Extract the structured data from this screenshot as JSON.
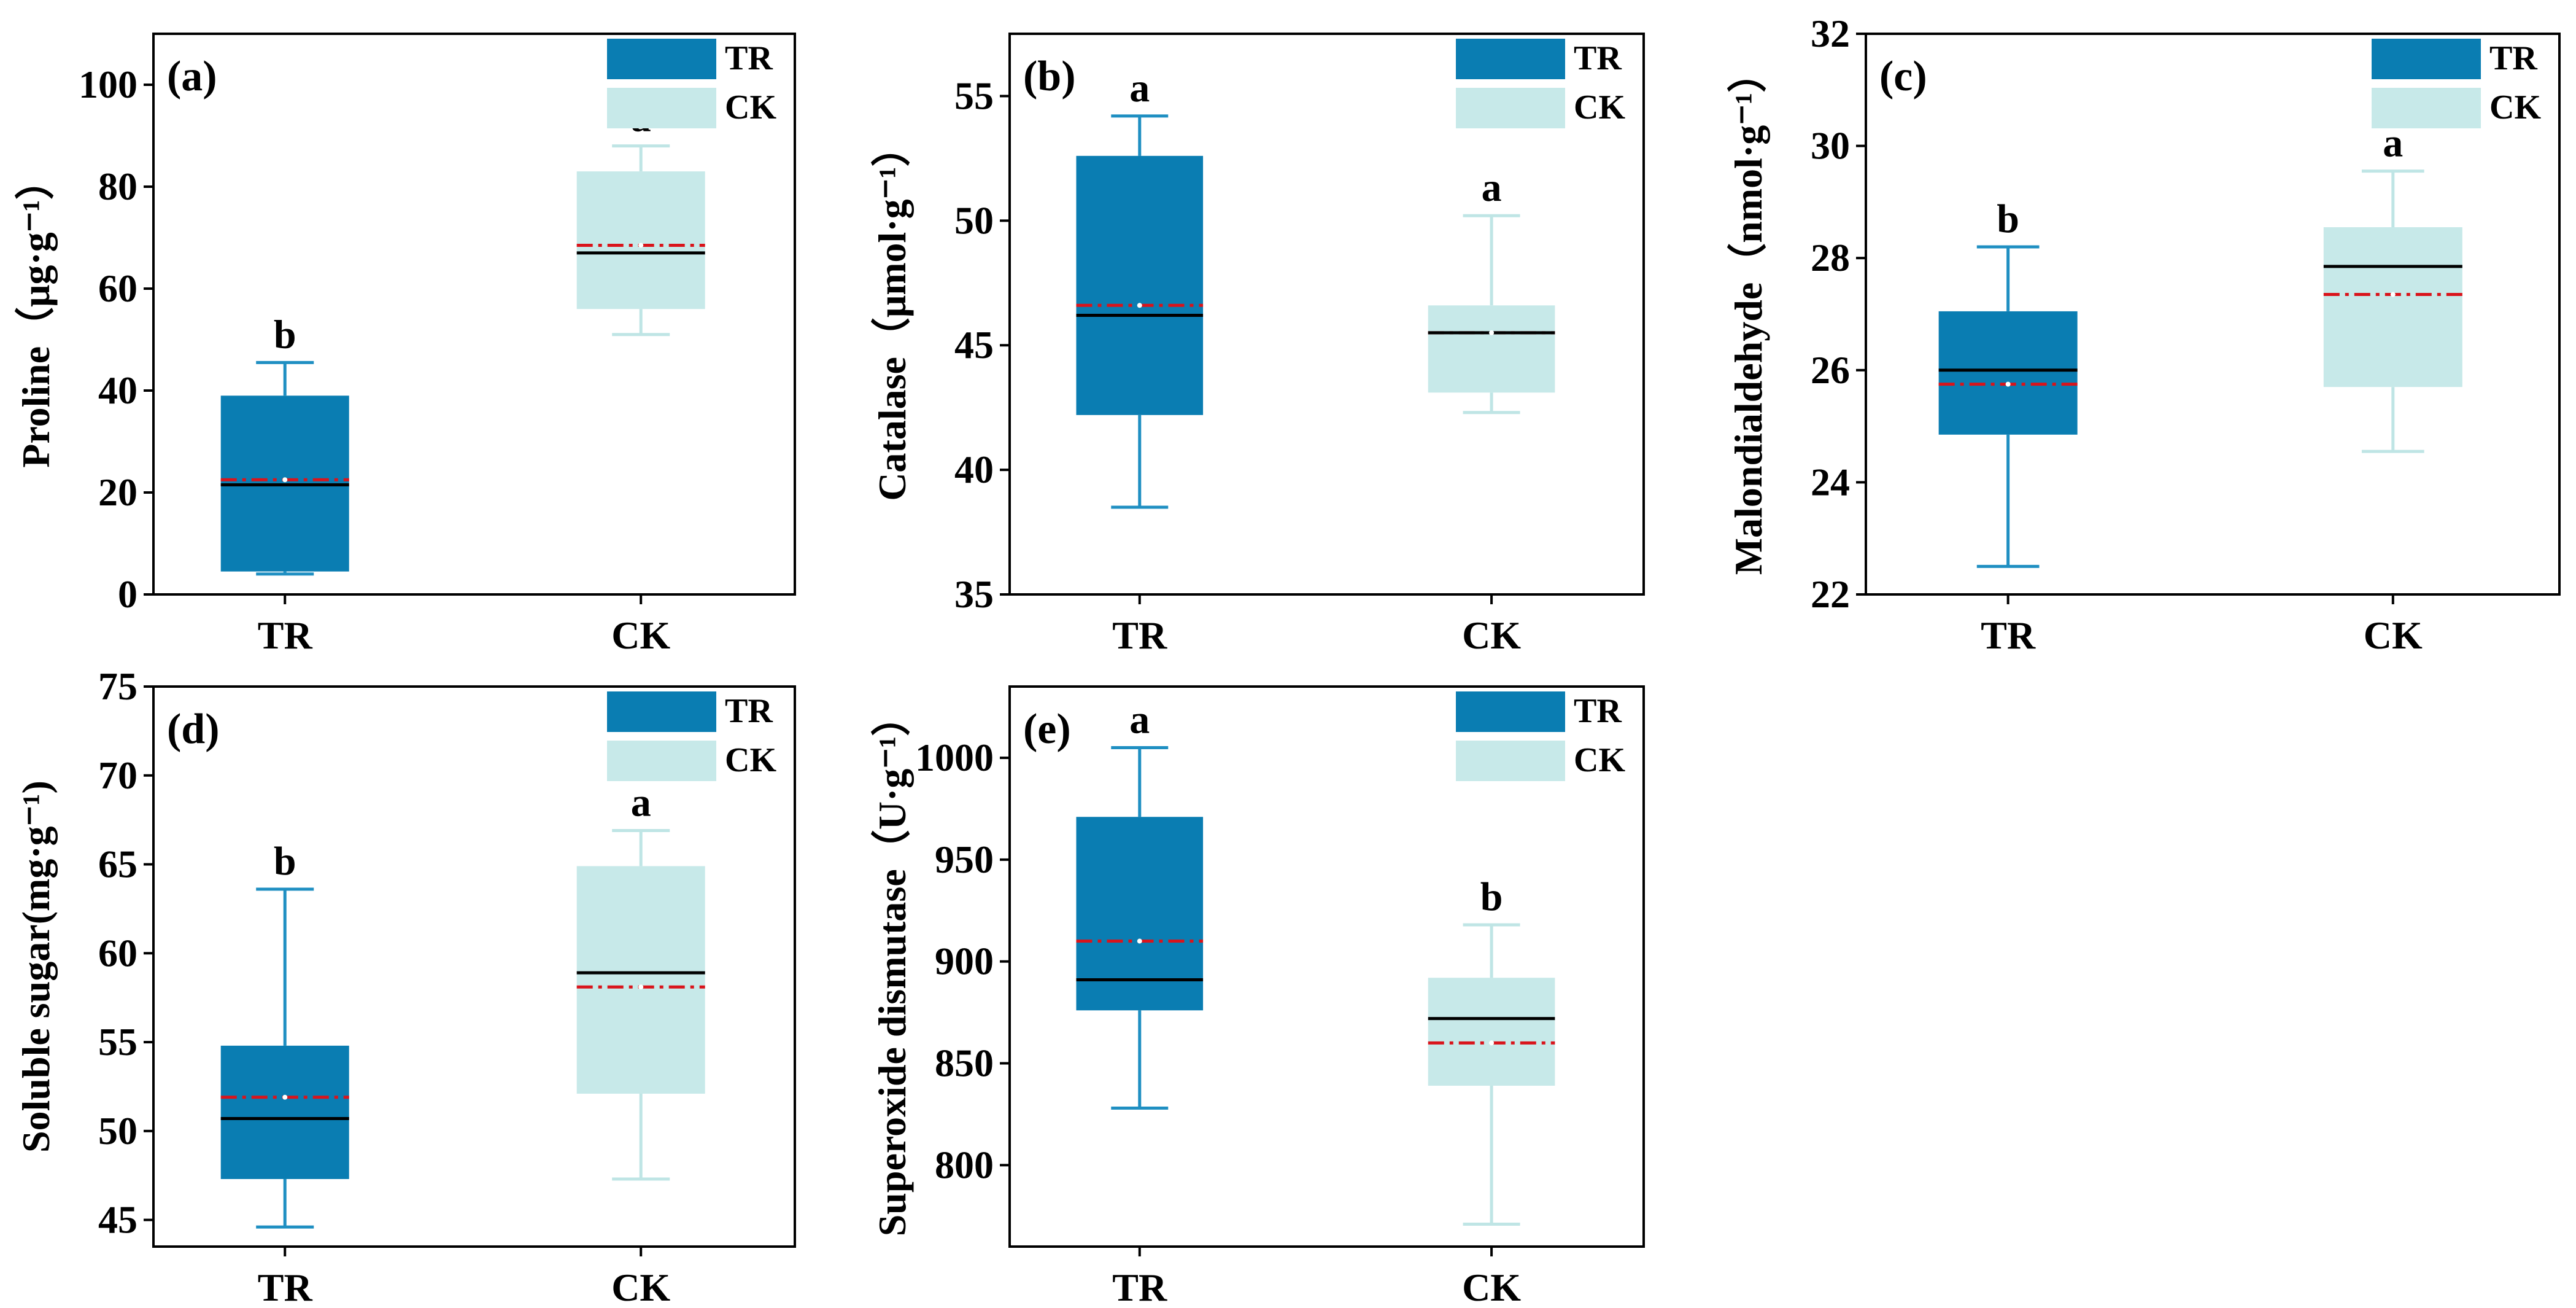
{
  "colors": {
    "tr_fill": "#0a7db2",
    "ck_fill": "#c7e9e9",
    "tr_whisker": "#1f8fc2",
    "ck_whisker": "#bfe5e5",
    "median": "#000000",
    "mean": "#d9141b"
  },
  "chart_data": [
    {
      "type": "box",
      "panel_label": "(a)",
      "ylabel": "Proline（μg·g⁻¹）",
      "ylim": [
        0,
        110
      ],
      "yticks": [
        "0",
        "20",
        "40",
        "60",
        "80",
        "100"
      ],
      "ytick_values": [
        0,
        20,
        40,
        60,
        80,
        100
      ],
      "categories": [
        "TR",
        "CK"
      ],
      "legend": [
        "TR",
        "CK"
      ],
      "boxes": [
        {
          "name": "TR",
          "min": 4,
          "q1": 4.5,
          "median": 21.5,
          "mean": 22.5,
          "q3": 39,
          "max": 45.5,
          "sig": "b"
        },
        {
          "name": "CK",
          "min": 51,
          "q1": 56,
          "median": 67,
          "mean": 68.5,
          "q3": 83,
          "max": 88,
          "sig": "a"
        }
      ]
    },
    {
      "type": "box",
      "panel_label": "(b)",
      "ylabel": "Catalase（μmol·g⁻¹）",
      "ylim": [
        35,
        57.5
      ],
      "yticks": [
        "35",
        "40",
        "45",
        "50",
        "55"
      ],
      "ytick_values": [
        35,
        40,
        45,
        50,
        55
      ],
      "categories": [
        "TR",
        "CK"
      ],
      "legend": [
        "TR",
        "CK"
      ],
      "boxes": [
        {
          "name": "TR",
          "min": 38.5,
          "q1": 42.2,
          "median": 46.2,
          "mean": 46.6,
          "q3": 52.6,
          "max": 54.2,
          "sig": "a"
        },
        {
          "name": "CK",
          "min": 42.3,
          "q1": 43.1,
          "median": 45.5,
          "mean": 45.5,
          "q3": 46.6,
          "max": 50.2,
          "sig": "a"
        }
      ]
    },
    {
      "type": "box",
      "panel_label": "(c)",
      "ylabel": "Malondialdehyde（nmol·g⁻¹）",
      "ylim": [
        22,
        32
      ],
      "yticks": [
        "22",
        "24",
        "26",
        "28",
        "30",
        "32"
      ],
      "ytick_values": [
        22,
        24,
        26,
        28,
        30,
        32
      ],
      "categories": [
        "TR",
        "CK"
      ],
      "legend": [
        "TR",
        "CK"
      ],
      "boxes": [
        {
          "name": "TR",
          "min": 22.5,
          "q1": 24.85,
          "median": 26.0,
          "mean": 25.75,
          "q3": 27.05,
          "max": 28.2,
          "sig": "b"
        },
        {
          "name": "CK",
          "min": 24.55,
          "q1": 25.7,
          "median": 27.85,
          "mean": 27.35,
          "q3": 28.55,
          "max": 29.55,
          "sig": "a"
        }
      ]
    },
    {
      "type": "box",
      "panel_label": "(d)",
      "ylabel": "Soluble sugar(mg·g⁻¹)",
      "ylim": [
        43.5,
        75
      ],
      "yticks": [
        "45",
        "50",
        "55",
        "60",
        "65",
        "70",
        "75"
      ],
      "ytick_values": [
        45,
        50,
        55,
        60,
        65,
        70,
        75
      ],
      "categories": [
        "TR",
        "CK"
      ],
      "legend": [
        "TR",
        "CK"
      ],
      "boxes": [
        {
          "name": "TR",
          "min": 44.6,
          "q1": 47.3,
          "median": 50.7,
          "mean": 51.9,
          "q3": 54.8,
          "max": 63.6,
          "sig": "b"
        },
        {
          "name": "CK",
          "min": 47.3,
          "q1": 52.1,
          "median": 58.9,
          "mean": 58.1,
          "q3": 64.9,
          "max": 66.9,
          "sig": "a"
        }
      ]
    },
    {
      "type": "box",
      "panel_label": "(e)",
      "ylabel": "Superoxide dismutase（U·g⁻¹）",
      "ylim": [
        760,
        1035
      ],
      "yticks": [
        "800",
        "850",
        "900",
        "950",
        "1000"
      ],
      "ytick_values": [
        800,
        850,
        900,
        950,
        1000
      ],
      "categories": [
        "TR",
        "CK"
      ],
      "legend": [
        "TR",
        "CK"
      ],
      "boxes": [
        {
          "name": "TR",
          "min": 828,
          "q1": 876,
          "median": 891,
          "mean": 910,
          "q3": 971,
          "max": 1005,
          "sig": "a"
        },
        {
          "name": "CK",
          "min": 771,
          "q1": 839,
          "median": 872,
          "mean": 860,
          "q3": 892,
          "max": 918,
          "sig": "b"
        }
      ]
    }
  ]
}
